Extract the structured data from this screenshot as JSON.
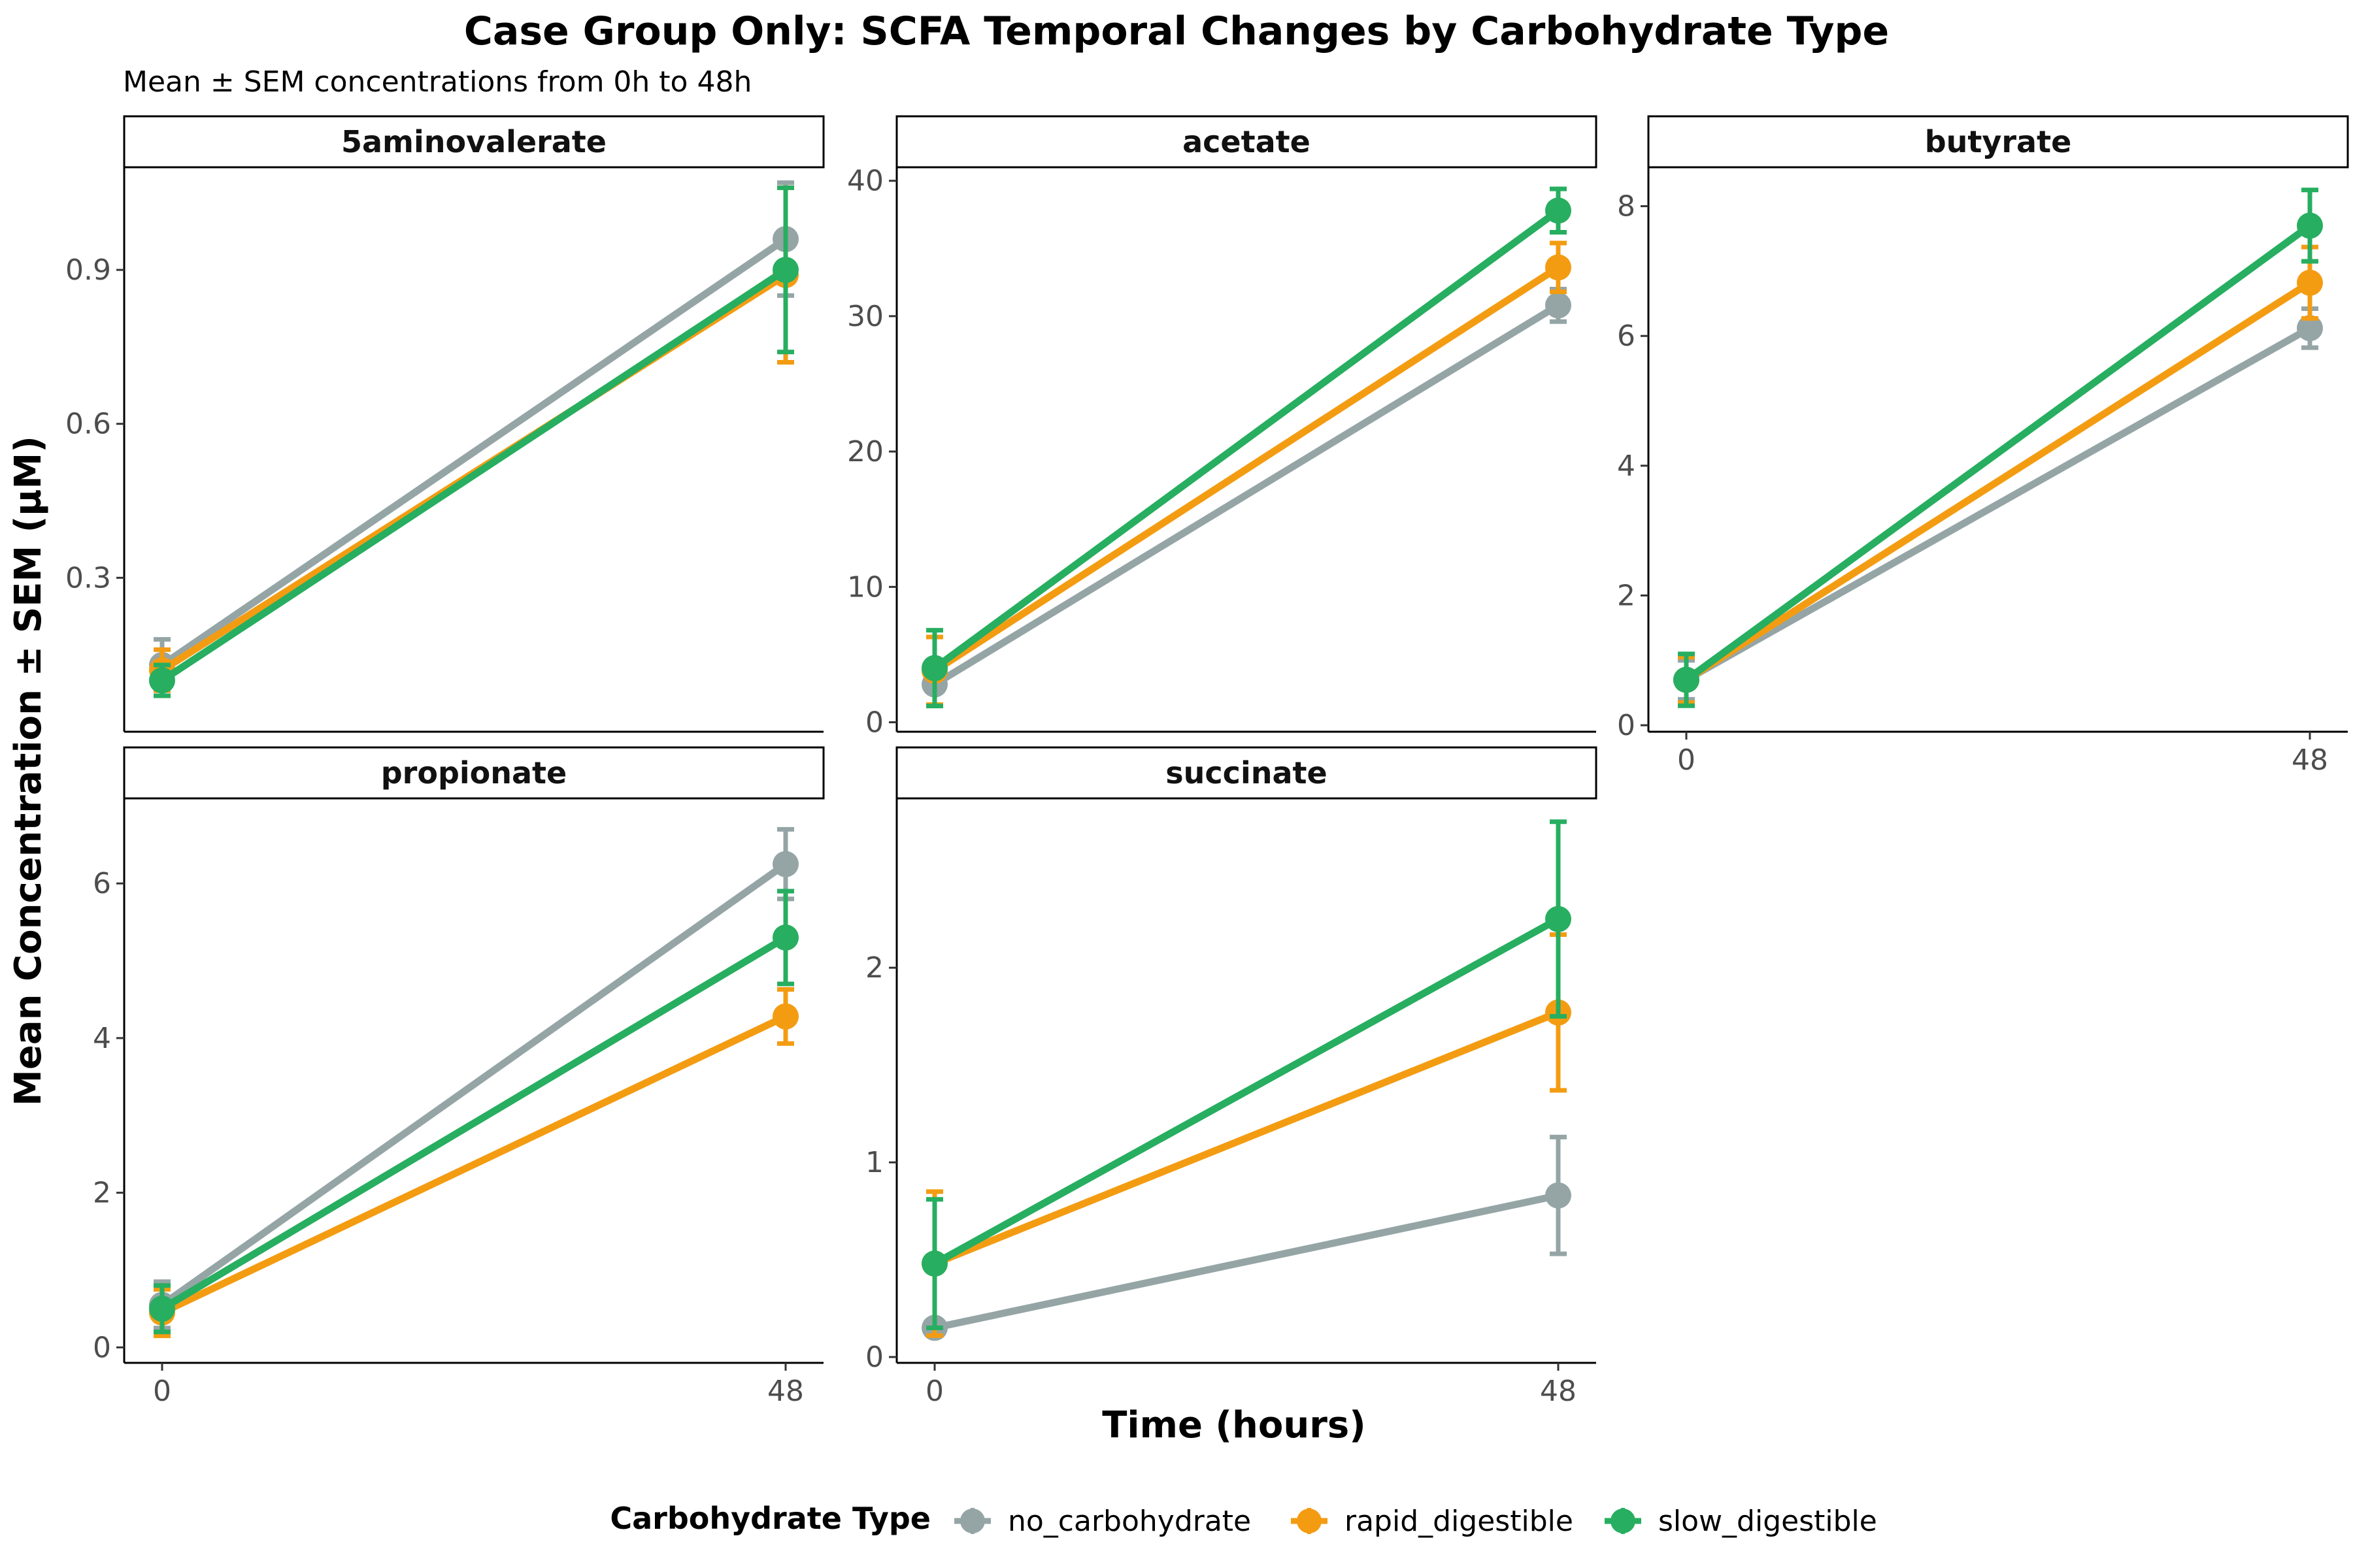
{
  "title": "Case Group Only: SCFA Temporal Changes by Carbohydrate Type",
  "subtitle": "Mean ± SEM concentrations from 0h to 48h",
  "xlabel": "Time (hours)",
  "ylabel": "Mean Concentration ± SEM (µM)",
  "legend": {
    "title": "Carbohydrate Type",
    "position": "bottom",
    "items": [
      {
        "name": "no_carbohydrate",
        "color": "#95a5a6"
      },
      {
        "name": "rapid_digestible",
        "color": "#f39c12"
      },
      {
        "name": "slow_digestible",
        "color": "#27ae60"
      }
    ]
  },
  "chart_data": {
    "type": "line",
    "facet_type": "line with error bars, faceted",
    "x": [
      0,
      48
    ],
    "x_tick_labels": [
      "0",
      "48"
    ],
    "grid": false,
    "series_names": [
      "no_carbohydrate",
      "rapid_digestible",
      "slow_digestible"
    ],
    "panels": [
      {
        "facet": "5aminovalerate",
        "ylim": [
          0.0,
          1.1
        ],
        "y_ticks": [
          0.3,
          0.6,
          0.9
        ],
        "y_tick_labels": [
          "0.3",
          "0.6",
          "0.9"
        ],
        "show_x_ticks": false,
        "series": [
          {
            "name": "no_carbohydrate",
            "values": [
              0.13,
              0.96
            ],
            "sem": [
              0.05,
              0.11
            ]
          },
          {
            "name": "rapid_digestible",
            "values": [
              0.12,
              0.89
            ],
            "sem": [
              0.04,
              0.17
            ]
          },
          {
            "name": "slow_digestible",
            "values": [
              0.1,
              0.9
            ],
            "sem": [
              0.03,
              0.16
            ]
          }
        ]
      },
      {
        "facet": "acetate",
        "ylim": [
          -0.7,
          41
        ],
        "y_ticks": [
          0,
          10,
          20,
          30,
          40
        ],
        "y_tick_labels": [
          "0",
          "10",
          "20",
          "30",
          "40"
        ],
        "show_x_ticks": false,
        "series": [
          {
            "name": "no_carbohydrate",
            "values": [
              2.8,
              30.8
            ],
            "sem": [
              1.5,
              1.2
            ]
          },
          {
            "name": "rapid_digestible",
            "values": [
              3.8,
              33.6
            ],
            "sem": [
              2.5,
              1.8
            ]
          },
          {
            "name": "slow_digestible",
            "values": [
              4.0,
              37.8
            ],
            "sem": [
              2.8,
              1.6
            ]
          }
        ]
      },
      {
        "facet": "butyrate",
        "ylim": [
          -0.1,
          8.6
        ],
        "y_ticks": [
          0,
          2,
          4,
          6,
          8
        ],
        "y_tick_labels": [
          "0",
          "2",
          "4",
          "6",
          "8"
        ],
        "show_x_ticks": true,
        "series": [
          {
            "name": "no_carbohydrate",
            "values": [
              0.7,
              6.12
            ],
            "sem": [
              0.3,
              0.3
            ]
          },
          {
            "name": "rapid_digestible",
            "values": [
              0.7,
              6.82
            ],
            "sem": [
              0.35,
              0.55
            ]
          },
          {
            "name": "slow_digestible",
            "values": [
              0.7,
              7.7
            ],
            "sem": [
              0.4,
              0.55
            ]
          }
        ]
      },
      {
        "facet": "propionate",
        "ylim": [
          -0.2,
          7.1
        ],
        "y_ticks": [
          0,
          2,
          4,
          6
        ],
        "y_tick_labels": [
          "0",
          "2",
          "4",
          "6"
        ],
        "show_x_ticks": true,
        "series": [
          {
            "name": "no_carbohydrate",
            "values": [
              0.55,
              6.25
            ],
            "sem": [
              0.3,
              0.45
            ]
          },
          {
            "name": "rapid_digestible",
            "values": [
              0.45,
              4.28
            ],
            "sem": [
              0.3,
              0.35
            ]
          },
          {
            "name": "slow_digestible",
            "values": [
              0.5,
              5.3
            ],
            "sem": [
              0.3,
              0.6
            ]
          }
        ]
      },
      {
        "facet": "succinate",
        "ylim": [
          -0.03,
          2.87
        ],
        "y_ticks": [
          0,
          1,
          2
        ],
        "y_tick_labels": [
          "0",
          "1",
          "2"
        ],
        "show_x_ticks": true,
        "series": [
          {
            "name": "no_carbohydrate",
            "values": [
              0.15,
              0.83
            ],
            "sem": [
              0.03,
              0.3
            ]
          },
          {
            "name": "rapid_digestible",
            "values": [
              0.48,
              1.77
            ],
            "sem": [
              0.37,
              0.4
            ]
          },
          {
            "name": "slow_digestible",
            "values": [
              0.48,
              2.25
            ],
            "sem": [
              0.33,
              0.5
            ]
          }
        ]
      }
    ]
  }
}
